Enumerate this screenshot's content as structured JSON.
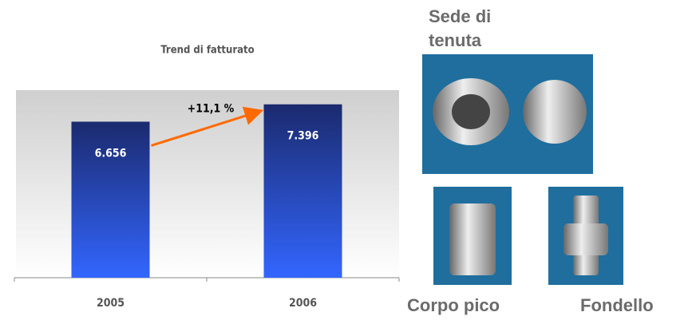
{
  "chart_data": {
    "type": "bar",
    "title": "Trend di fatturato",
    "categories": [
      "2005",
      "2006"
    ],
    "values": [
      6.656,
      7.396
    ],
    "ylim": [
      0,
      8
    ],
    "annotation": "+11,1 %"
  },
  "photos": [
    {
      "label": "Sede di tenuta"
    },
    {
      "label": "Corpo pico"
    },
    {
      "label": "Fondello"
    }
  ]
}
